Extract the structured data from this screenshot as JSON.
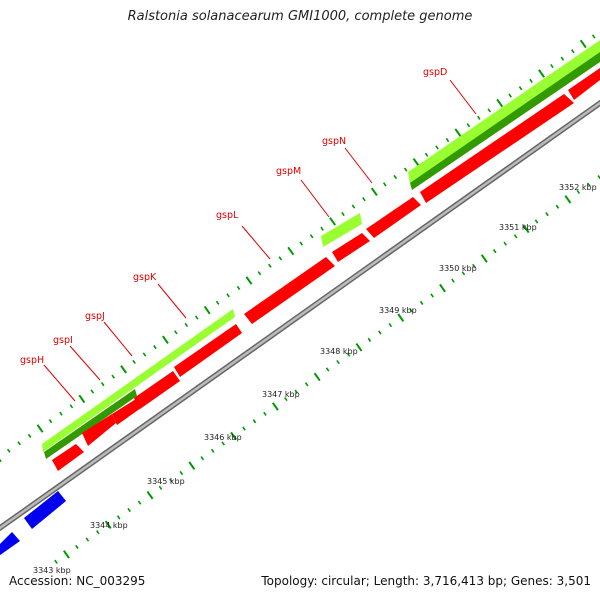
{
  "title": "Ralstonia solanacearum GMI1000, complete genome",
  "footer": {
    "accession": "Accession: NC_003295",
    "stats": "Topology: circular; Length: 3,716,413 bp; Genes: 3,501"
  },
  "gene_labels": [
    "gspH",
    "gspI",
    "gspJ",
    "gspK",
    "gspL",
    "gspM",
    "gspN",
    "gspD"
  ],
  "scale_labels": [
    "3343 kbp",
    "3344 kbp",
    "3345 kbp",
    "3346 kbp",
    "3347 kbp",
    "3348 kbp",
    "3349 kbp",
    "3350 kbp",
    "3351 kbp",
    "3352 kbp"
  ],
  "colors": {
    "forward_cds": "#ff0000",
    "reverse_cds": "#0000ff",
    "protein_light": "#99ff33",
    "protein_dark": "#339900",
    "backbone": "#999999",
    "ticks": "#009900",
    "label_red": "#e00000"
  }
}
